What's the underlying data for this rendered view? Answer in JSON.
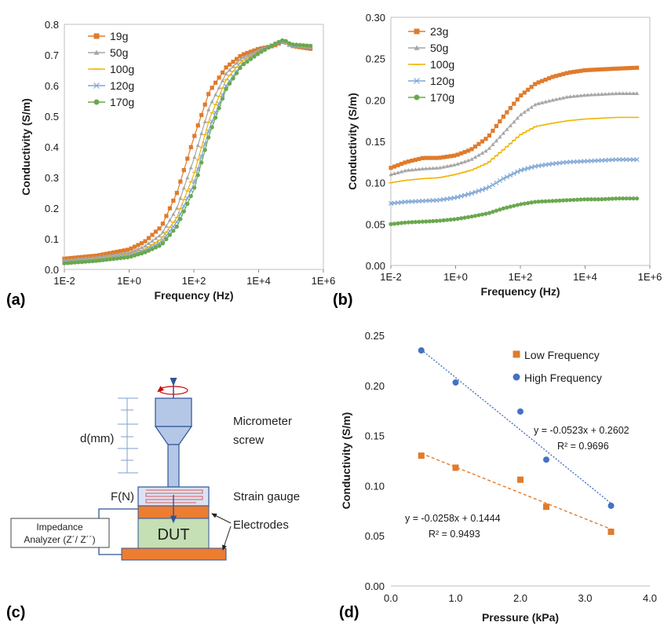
{
  "colors": {
    "orange": "#e07b2c",
    "gray": "#a6a6a6",
    "yellow": "#f0b400",
    "lightblue": "#7fa7d6",
    "green": "#6aa84f",
    "blue": "#4472c4",
    "electrode": "#ed7d31",
    "dut": "#c5e0b4",
    "screw": "#b4c7e7"
  },
  "panel_labels": {
    "a": "(a)",
    "b": "(b)",
    "c": "(c)",
    "d": "(d)"
  },
  "diagram": {
    "d_label": "d(mm)",
    "f_label": "F(N)",
    "micrometer_line1": "Micrometer",
    "micrometer_line2": "screw",
    "strain_gauge": "Strain gauge",
    "electrodes": "Electrodes",
    "dut": "DUT",
    "impedance_line1": "Impedance",
    "impedance_line2": "Analyzer (Z´/ Z´´)"
  },
  "chart_data": [
    {
      "id": "a",
      "type": "line",
      "xlabel": "Frequency (Hz)",
      "ylabel": "Conductivity (S/m)",
      "x_scale": "log",
      "xlim": [
        0.01,
        1000000
      ],
      "ylim": [
        0,
        0.8
      ],
      "x_ticks": [
        "1E-2",
        "1E+0",
        "1E+2",
        "1E+4",
        "1E+6"
      ],
      "y_ticks": [
        "0.0",
        "0.1",
        "0.2",
        "0.3",
        "0.4",
        "0.5",
        "0.6",
        "0.7",
        "0.8"
      ],
      "x": [
        0.01,
        0.1,
        1,
        3,
        10,
        30,
        100,
        300,
        1000,
        3000,
        10000,
        30000,
        60000,
        100000,
        400000
      ],
      "series": [
        {
          "name": "19g",
          "color": "orange",
          "marker": "square",
          "values": [
            0.035,
            0.045,
            0.065,
            0.09,
            0.14,
            0.25,
            0.43,
            0.58,
            0.66,
            0.7,
            0.72,
            0.73,
            0.745,
            0.73,
            0.72
          ]
        },
        {
          "name": "50g",
          "color": "gray",
          "marker": "triangle",
          "values": [
            0.03,
            0.04,
            0.055,
            0.075,
            0.115,
            0.2,
            0.36,
            0.53,
            0.64,
            0.69,
            0.715,
            0.735,
            0.745,
            0.73,
            0.725
          ]
        },
        {
          "name": "100g",
          "color": "yellow",
          "marker": "dash",
          "values": [
            0.025,
            0.035,
            0.05,
            0.065,
            0.1,
            0.17,
            0.31,
            0.49,
            0.62,
            0.68,
            0.71,
            0.735,
            0.745,
            0.73,
            0.725
          ]
        },
        {
          "name": "120g",
          "color": "lightblue",
          "marker": "cross",
          "values": [
            0.022,
            0.03,
            0.045,
            0.06,
            0.09,
            0.155,
            0.28,
            0.46,
            0.6,
            0.67,
            0.71,
            0.735,
            0.745,
            0.73,
            0.728
          ]
        },
        {
          "name": "170g",
          "color": "green",
          "marker": "circle",
          "values": [
            0.02,
            0.028,
            0.04,
            0.055,
            0.08,
            0.14,
            0.26,
            0.44,
            0.59,
            0.665,
            0.705,
            0.735,
            0.75,
            0.735,
            0.73
          ]
        }
      ]
    },
    {
      "id": "b",
      "type": "line",
      "xlabel": "Frequency (Hz)",
      "ylabel": "Conductivity (S/m)",
      "x_scale": "log",
      "xlim": [
        0.01,
        1000000
      ],
      "ylim": [
        0,
        0.3
      ],
      "x_ticks": [
        "1E-2",
        "1E+0",
        "1E+2",
        "1E+4",
        "1E+6"
      ],
      "y_ticks": [
        "0.00",
        "0.05",
        "0.10",
        "0.15",
        "0.20",
        "0.25",
        "0.30"
      ],
      "x": [
        0.01,
        0.03,
        0.1,
        0.3,
        1,
        3,
        10,
        30,
        100,
        300,
        1000,
        3000,
        10000,
        30000,
        100000,
        400000
      ],
      "series": [
        {
          "name": "23g",
          "color": "orange",
          "marker": "square",
          "values": [
            0.118,
            0.125,
            0.13,
            0.13,
            0.133,
            0.14,
            0.155,
            0.18,
            0.205,
            0.22,
            0.228,
            0.233,
            0.236,
            0.237,
            0.238,
            0.239
          ]
        },
        {
          "name": "50g",
          "color": "gray",
          "marker": "triangle",
          "values": [
            0.11,
            0.115,
            0.117,
            0.118,
            0.122,
            0.128,
            0.14,
            0.16,
            0.182,
            0.195,
            0.2,
            0.204,
            0.206,
            0.207,
            0.208,
            0.208
          ]
        },
        {
          "name": "100g",
          "color": "yellow",
          "marker": "dash",
          "values": [
            0.1,
            0.103,
            0.105,
            0.106,
            0.11,
            0.115,
            0.124,
            0.14,
            0.158,
            0.168,
            0.172,
            0.175,
            0.177,
            0.178,
            0.179,
            0.179
          ]
        },
        {
          "name": "120g",
          "color": "lightblue",
          "marker": "cross",
          "values": [
            0.075,
            0.077,
            0.078,
            0.079,
            0.082,
            0.087,
            0.094,
            0.105,
            0.115,
            0.12,
            0.123,
            0.125,
            0.126,
            0.127,
            0.128,
            0.128
          ]
        },
        {
          "name": "170g",
          "color": "green",
          "marker": "circle",
          "values": [
            0.05,
            0.052,
            0.053,
            0.054,
            0.056,
            0.059,
            0.063,
            0.069,
            0.074,
            0.077,
            0.078,
            0.079,
            0.08,
            0.08,
            0.081,
            0.081
          ]
        }
      ]
    },
    {
      "id": "d",
      "type": "scatter",
      "xlabel": "Pressure (kPa)",
      "ylabel": "Conductivity (S/m)",
      "xlim": [
        0,
        4.0
      ],
      "ylim": [
        0,
        0.25
      ],
      "x_ticks": [
        "0.0",
        "1.0",
        "2.0",
        "3.0",
        "4.0"
      ],
      "y_ticks": [
        "0.00",
        "0.05",
        "0.10",
        "0.15",
        "0.20",
        "0.25"
      ],
      "series": [
        {
          "name": "Low Frequency",
          "color": "orange",
          "marker": "square",
          "x": [
            0.47,
            1.0,
            2.0,
            2.4,
            3.4
          ],
          "values": [
            0.13,
            0.118,
            0.106,
            0.079,
            0.054
          ],
          "trend": {
            "slope": -0.0258,
            "intercept": 0.1444
          },
          "equation": "y = -0.0258x + 0.1444",
          "r2": "R² = 0.9493"
        },
        {
          "name": "High Frequency",
          "color": "blue",
          "marker": "circle",
          "x": [
            0.47,
            1.0,
            2.0,
            2.4,
            3.4
          ],
          "values": [
            0.235,
            0.203,
            0.174,
            0.126,
            0.08
          ],
          "trend": {
            "slope": -0.0523,
            "intercept": 0.2602
          },
          "equation": "y = -0.0523x + 0.2602",
          "r2": "R² = 0.9696"
        }
      ]
    }
  ]
}
